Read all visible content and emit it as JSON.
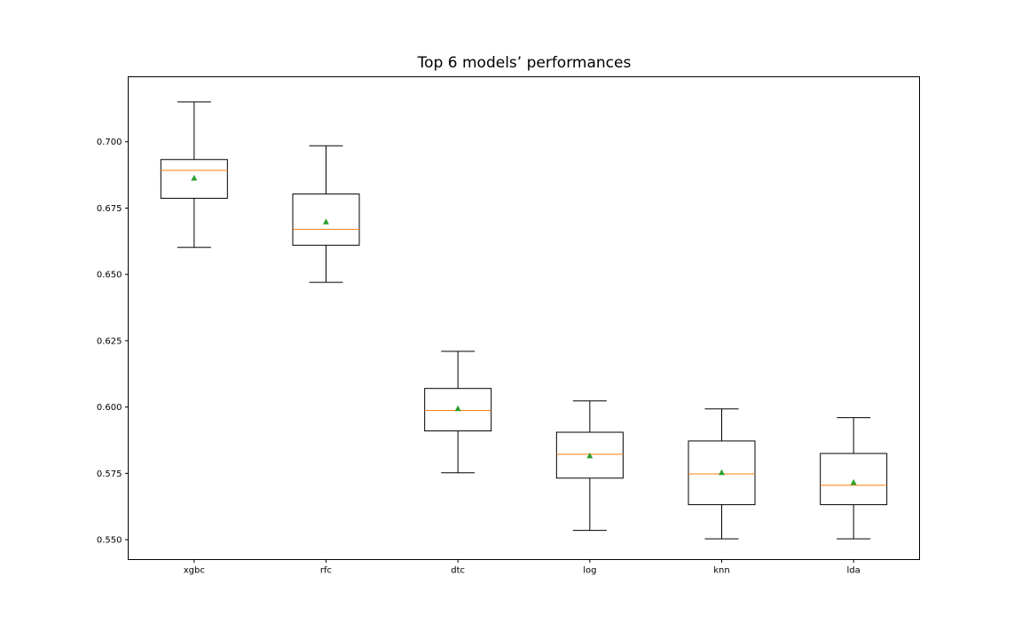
{
  "chart_data": {
    "type": "box",
    "title": "Top 6 models’ performances",
    "xlabel": "",
    "ylabel": "",
    "ylim": [
      0.5425,
      0.7245
    ],
    "yticks": [
      "0.550",
      "0.575",
      "0.600",
      "0.625",
      "0.650",
      "0.675",
      "0.700"
    ],
    "grid": false,
    "categories": [
      "xgbc",
      "rfc",
      "dtc",
      "log",
      "knn",
      "lda"
    ],
    "boxes": [
      {
        "name": "xgbc",
        "whisker_low": 0.6602,
        "q1": 0.6787,
        "median": 0.6892,
        "q3": 0.6933,
        "whisker_high": 0.715,
        "mean": 0.6862
      },
      {
        "name": "rfc",
        "whisker_low": 0.647,
        "q1": 0.661,
        "median": 0.667,
        "q3": 0.6803,
        "whisker_high": 0.6985,
        "mean": 0.6697
      },
      {
        "name": "dtc",
        "whisker_low": 0.5752,
        "q1": 0.591,
        "median": 0.5987,
        "q3": 0.607,
        "whisker_high": 0.621,
        "mean": 0.5993
      },
      {
        "name": "log",
        "whisker_low": 0.5535,
        "q1": 0.5732,
        "median": 0.5822,
        "q3": 0.5905,
        "whisker_high": 0.6023,
        "mean": 0.5815
      },
      {
        "name": "knn",
        "whisker_low": 0.5503,
        "q1": 0.5632,
        "median": 0.5748,
        "q3": 0.5872,
        "whisker_high": 0.5993,
        "mean": 0.5752
      },
      {
        "name": "lda",
        "whisker_low": 0.5503,
        "q1": 0.5632,
        "median": 0.5705,
        "q3": 0.5825,
        "whisker_high": 0.596,
        "mean": 0.5715
      }
    ],
    "colors": {
      "box": "#000000",
      "median": "#ff7f0e",
      "mean_marker": "#2ca02c"
    }
  }
}
